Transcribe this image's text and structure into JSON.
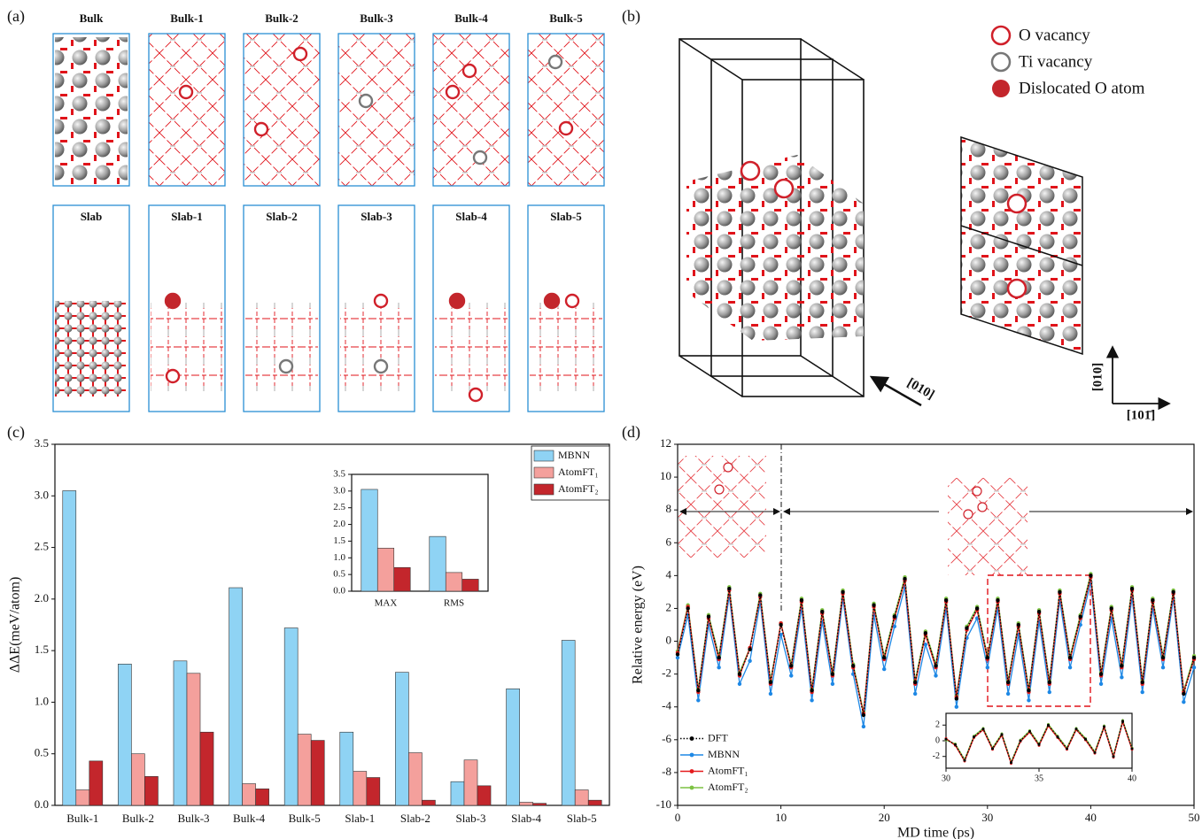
{
  "panels": {
    "a": {
      "label": "(a)",
      "titles": [
        "Bulk",
        "Bulk-1",
        "Bulk-2",
        "Bulk-3",
        "Bulk-4",
        "Bulk-5",
        "Slab",
        "Slab-1",
        "Slab-2",
        "Slab-3",
        "Slab-4",
        "Slab-5"
      ]
    },
    "b": {
      "label": "(b)",
      "legend": [
        "O vacancy",
        "Ti vacancy",
        "Dislocated O atom"
      ],
      "directions": [
        "[010]",
        "[010]",
        "[101̄]"
      ]
    },
    "c": {
      "label": "(c)"
    },
    "d": {
      "label": "(d)"
    }
  },
  "chart_data": [
    {
      "type": "bar",
      "ylabel": "ΔΔE(meV/atom)",
      "categories": [
        "Bulk-1",
        "Bulk-2",
        "Bulk-3",
        "Bulk-4",
        "Bulk-5",
        "Slab-1",
        "Slab-2",
        "Slab-3",
        "Slab-4",
        "Slab-5"
      ],
      "series": [
        {
          "name": "MBNN",
          "color": "#8fd3f4",
          "values": [
            3.05,
            1.37,
            1.4,
            2.11,
            1.72,
            0.71,
            1.29,
            0.23,
            1.13,
            1.6
          ]
        },
        {
          "name": "AtomFT₁",
          "color": "#f4a09c",
          "values": [
            0.15,
            0.5,
            1.28,
            0.21,
            0.69,
            0.33,
            0.51,
            0.44,
            0.03,
            0.15
          ]
        },
        {
          "name": "AtomFT₂",
          "color": "#c3262c",
          "values": [
            0.43,
            0.28,
            0.71,
            0.16,
            0.63,
            0.27,
            0.05,
            0.19,
            0.02,
            0.05
          ]
        }
      ],
      "ylim": [
        0,
        3.5
      ],
      "yticks": [
        {
          "value": 0,
          "label": "0.0"
        },
        0.5,
        {
          "value": 1,
          "label": "1.0"
        },
        1.5,
        {
          "value": 2,
          "label": "2.0"
        },
        2.5,
        {
          "value": 3,
          "label": "3.0"
        },
        3.5
      ],
      "legend": "upper right",
      "grid": false
    },
    {
      "type": "bar",
      "categories": [
        "MAX",
        "RMS"
      ],
      "series": [
        {
          "color": "#8fd3f4",
          "values": [
            3.05,
            1.64
          ]
        },
        {
          "color": "#f4a09c",
          "values": [
            1.29,
            0.56
          ]
        },
        {
          "color": "#c3262c",
          "values": [
            0.71,
            0.36
          ]
        }
      ],
      "ylim": [
        0,
        3.5
      ],
      "yticks": [
        {
          "value": 0,
          "label": "0.0"
        },
        0.5,
        {
          "value": 1,
          "label": "1.0"
        },
        1.5,
        {
          "value": 2,
          "label": "2.0"
        },
        2.5,
        {
          "value": 3,
          "label": "3.0"
        },
        3.5
      ],
      "grid": false
    },
    {
      "type": "line",
      "xlabel": "MD time (ps)",
      "ylabel": "Relative energy (eV)",
      "x": [
        0,
        1,
        2,
        3,
        4,
        5,
        6,
        7,
        8,
        9,
        10,
        11,
        12,
        13,
        14,
        15,
        16,
        17,
        18,
        19,
        20,
        21,
        22,
        23,
        24,
        25,
        26,
        27,
        28,
        29,
        30,
        31,
        32,
        33,
        34,
        35,
        36,
        37,
        38,
        39,
        40,
        41,
        42,
        43,
        44,
        45,
        46,
        47,
        48,
        49,
        50
      ],
      "series": [
        {
          "name": "DFT",
          "color": "#000000",
          "line_style": "dotted",
          "values": [
            -0.8,
            2.0,
            -3.0,
            1.5,
            -1.0,
            3.2,
            -2.0,
            -0.5,
            2.8,
            -2.5,
            1.0,
            -1.5,
            2.5,
            -3.0,
            1.8,
            -2.0,
            3.0,
            -1.5,
            -4.5,
            2.2,
            -1.0,
            1.5,
            3.8,
            -2.5,
            0.5,
            -1.5,
            2.5,
            -3.5,
            0.8,
            2.0,
            -1.0,
            2.5,
            -2.5,
            1.0,
            -3.0,
            1.8,
            -2.5,
            3.0,
            -1.0,
            1.5,
            4.0,
            -2.0,
            2.0,
            -1.5,
            3.2,
            -2.5,
            2.5,
            -1.0,
            3.0,
            -3.2,
            -1.0
          ]
        },
        {
          "name": "MBNN",
          "color": "#1e88e5",
          "line_style": "solid",
          "values": [
            -1.0,
            1.6,
            -3.6,
            1.0,
            -1.6,
            2.8,
            -2.6,
            -1.2,
            2.4,
            -3.2,
            0.4,
            -2.1,
            2.0,
            -3.6,
            1.2,
            -2.6,
            2.6,
            -2.0,
            -5.2,
            1.6,
            -1.7,
            0.9,
            3.3,
            -3.2,
            -0.2,
            -2.1,
            2.0,
            -4.0,
            0.2,
            1.4,
            -1.6,
            2.0,
            -3.2,
            0.4,
            -3.6,
            1.2,
            -3.1,
            2.5,
            -1.6,
            1.0,
            3.6,
            -2.6,
            1.4,
            -2.2,
            2.7,
            -3.1,
            2.0,
            -1.6,
            2.6,
            -3.7,
            -1.6
          ]
        },
        {
          "name": "AtomFT₁",
          "color": "#e41a1c",
          "line_style": "solid",
          "values": [
            -0.7,
            2.1,
            -3.1,
            1.4,
            -1.1,
            3.1,
            -2.1,
            -0.4,
            2.7,
            -2.6,
            1.1,
            -1.6,
            2.4,
            -3.1,
            1.7,
            -2.1,
            2.9,
            -1.6,
            -4.4,
            2.1,
            -1.1,
            1.4,
            3.7,
            -2.6,
            0.4,
            -1.6,
            2.4,
            -3.4,
            0.7,
            1.9,
            -1.1,
            2.4,
            -2.6,
            0.9,
            -3.1,
            1.7,
            -2.6,
            2.9,
            -1.1,
            1.4,
            3.9,
            -2.1,
            1.9,
            -1.6,
            3.1,
            -2.6,
            2.4,
            -1.1,
            2.9,
            -3.1,
            -1.1
          ]
        },
        {
          "name": "AtomFT₂",
          "color": "#7cc242",
          "line_style": "solid",
          "values": [
            -0.6,
            2.2,
            -2.9,
            1.6,
            -0.9,
            3.3,
            -1.9,
            -0.4,
            2.9,
            -2.4,
            1.1,
            -1.4,
            2.6,
            -2.9,
            1.9,
            -1.9,
            3.1,
            -1.4,
            -4.3,
            2.3,
            -0.9,
            1.6,
            3.9,
            -2.4,
            0.6,
            -1.4,
            2.6,
            -3.3,
            0.9,
            2.1,
            -0.9,
            2.6,
            -2.4,
            1.1,
            -2.9,
            1.9,
            -2.4,
            3.1,
            -0.9,
            1.6,
            4.1,
            -1.9,
            2.1,
            -1.4,
            3.3,
            -2.4,
            2.6,
            -0.9,
            3.1,
            -3.0,
            -0.9
          ]
        }
      ],
      "xlim": [
        0,
        50
      ],
      "xticks": [
        0,
        10,
        20,
        30,
        40,
        50
      ],
      "ylim": [
        -10,
        12
      ],
      "yticks": [
        -10,
        -8,
        -6,
        -4,
        -2,
        0,
        2,
        4,
        6,
        8,
        10,
        12
      ],
      "legend": "lower left",
      "grid": false
    },
    {
      "type": "line",
      "x": [
        30,
        30.5,
        31,
        31.5,
        32,
        32.5,
        33,
        33.5,
        34,
        34.5,
        35,
        35.5,
        36,
        36.5,
        37,
        37.5,
        38,
        38.5,
        39,
        39.5,
        40
      ],
      "series": [
        {
          "color": "#000000",
          "line_style": "dotted",
          "values": [
            0.2,
            -0.5,
            -2.5,
            0.5,
            1.5,
            -1.0,
            0.8,
            -2.8,
            0.0,
            1.2,
            -0.5,
            2.0,
            0.5,
            -1.0,
            1.5,
            0.2,
            -1.5,
            1.8,
            -2.0,
            2.5,
            -1.0
          ]
        },
        {
          "color": "#e41a1c",
          "line_style": "solid",
          "values": [
            0.3,
            -0.6,
            -2.6,
            0.4,
            1.4,
            -1.1,
            0.7,
            -2.9,
            -0.1,
            1.1,
            -0.6,
            1.9,
            0.4,
            -1.1,
            1.4,
            0.1,
            -1.6,
            1.7,
            -2.1,
            2.4,
            -1.1
          ]
        },
        {
          "color": "#7cc242",
          "line_style": "solid",
          "values": [
            0.1,
            -0.4,
            -2.4,
            0.6,
            1.6,
            -0.9,
            0.9,
            -2.7,
            0.1,
            1.3,
            -0.4,
            2.1,
            0.6,
            -0.9,
            1.6,
            0.3,
            -1.4,
            1.9,
            -1.9,
            2.6,
            -0.9
          ]
        }
      ],
      "xlim": [
        30,
        40
      ],
      "xticks": [
        30,
        35,
        40
      ],
      "ylim": [
        -3.5,
        3.5
      ],
      "yticks": [
        -2,
        0,
        2
      ],
      "grid": false
    }
  ]
}
